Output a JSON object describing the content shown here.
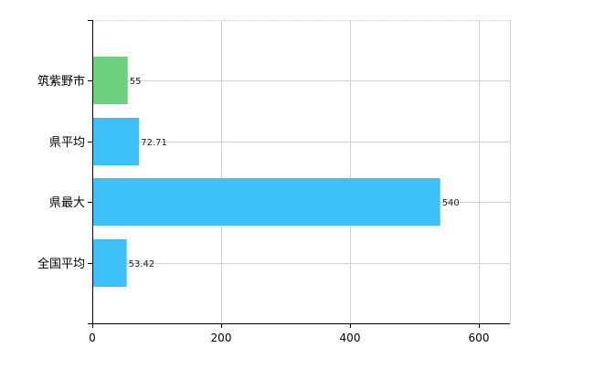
{
  "chart_data": {
    "type": "bar",
    "orientation": "horizontal",
    "categories": [
      "筑紫野市",
      "県平均",
      "県最大",
      "全国平均"
    ],
    "values": [
      55,
      72.71,
      540,
      53.42
    ],
    "data_labels": [
      "55",
      "72.71",
      "540",
      "53.42"
    ],
    "bar_colors": [
      "#6dd07f",
      "#3dbff8",
      "#3dbff8",
      "#3dbff8"
    ],
    "xlim": [
      0,
      650
    ],
    "x_ticks": [
      0,
      200,
      400,
      600
    ],
    "title": "",
    "xlabel": "",
    "ylabel": "",
    "grid": true
  }
}
